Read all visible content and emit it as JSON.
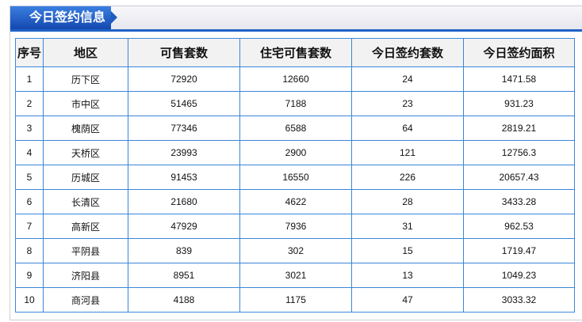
{
  "title": "今日签约信息",
  "columns": [
    "序号",
    "地区",
    "可售套数",
    "住宅可售套数",
    "今日签约套数",
    "今日签约面积"
  ],
  "rows": [
    [
      "1",
      "历下区",
      "72920",
      "12660",
      "24",
      "1471.58"
    ],
    [
      "2",
      "市中区",
      "51465",
      "7188",
      "23",
      "931.23"
    ],
    [
      "3",
      "槐荫区",
      "77346",
      "6588",
      "64",
      "2819.21"
    ],
    [
      "4",
      "天桥区",
      "23993",
      "2900",
      "121",
      "12756.3"
    ],
    [
      "5",
      "历城区",
      "91453",
      "16550",
      "226",
      "20657.43"
    ],
    [
      "6",
      "长清区",
      "21680",
      "4622",
      "28",
      "3433.28"
    ],
    [
      "7",
      "高新区",
      "47929",
      "7936",
      "31",
      "962.53"
    ],
    [
      "8",
      "平阴县",
      "839",
      "302",
      "15",
      "1719.47"
    ],
    [
      "9",
      "济阳县",
      "8951",
      "3021",
      "13",
      "1049.23"
    ],
    [
      "10",
      "商河县",
      "4188",
      "1175",
      "47",
      "3033.32"
    ]
  ]
}
